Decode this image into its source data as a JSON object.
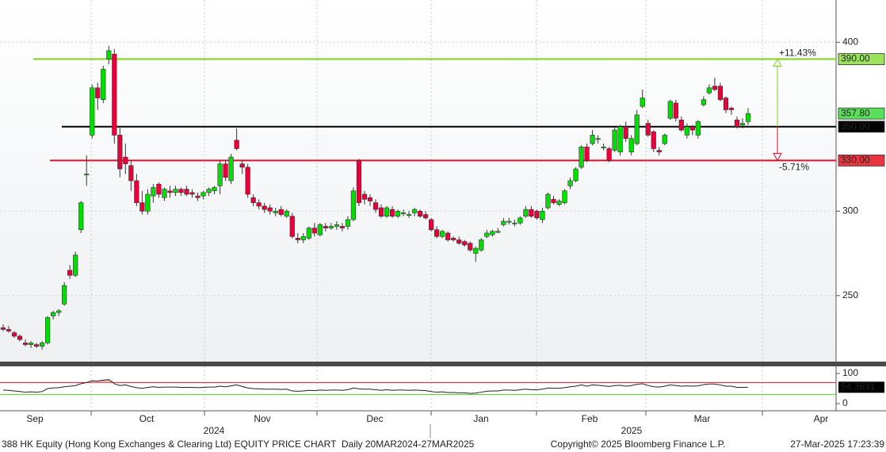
{
  "chart_data": {
    "type": "candlestick",
    "ylim": [
      210,
      425
    ],
    "yticks": [
      250,
      300,
      400
    ],
    "grid": true,
    "ohlc": [
      [
        231,
        233,
        229,
        230
      ],
      [
        230,
        232,
        228,
        229
      ],
      [
        228,
        229,
        225,
        226
      ],
      [
        226,
        227,
        223,
        224
      ],
      [
        222,
        224,
        220,
        221
      ],
      [
        221,
        223,
        219,
        222
      ],
      [
        221,
        222,
        219,
        220
      ],
      [
        220,
        223,
        218,
        222
      ],
      [
        222,
        238,
        221,
        237
      ],
      [
        238,
        241,
        236,
        240
      ],
      [
        240,
        242,
        238,
        241
      ],
      [
        245,
        258,
        244,
        256
      ],
      [
        265,
        268,
        260,
        262
      ],
      [
        262,
        276,
        261,
        274
      ],
      [
        289,
        306,
        287,
        305
      ],
      [
        322,
        333,
        315,
        322
      ],
      [
        345,
        375,
        343,
        373
      ],
      [
        373,
        376,
        360,
        367
      ],
      [
        366,
        386,
        364,
        384
      ],
      [
        390,
        398,
        387,
        395
      ],
      [
        393,
        396,
        340,
        345
      ],
      [
        345,
        350,
        320,
        325
      ],
      [
        332,
        340,
        322,
        328
      ],
      [
        327,
        330,
        312,
        318
      ],
      [
        318,
        322,
        303,
        305
      ],
      [
        305,
        312,
        298,
        300
      ],
      [
        300,
        313,
        298,
        310
      ],
      [
        309,
        316,
        305,
        314
      ],
      [
        316,
        317,
        308,
        310
      ],
      [
        308,
        314,
        306,
        313
      ],
      [
        312,
        315,
        308,
        311
      ],
      [
        311,
        315,
        309,
        313
      ],
      [
        313,
        314,
        309,
        311
      ],
      [
        313,
        315,
        309,
        310
      ],
      [
        311,
        313,
        308,
        310
      ],
      [
        309,
        311,
        306,
        308
      ],
      [
        309,
        312,
        307,
        311
      ],
      [
        311,
        314,
        309,
        313
      ],
      [
        312,
        315,
        310,
        314
      ],
      [
        315,
        330,
        310,
        328
      ],
      [
        328,
        330,
        318,
        320
      ],
      [
        318,
        334,
        316,
        332
      ],
      [
        342,
        349,
        336,
        337
      ],
      [
        328,
        330,
        322,
        326
      ],
      [
        326,
        328,
        308,
        310
      ],
      [
        308,
        310,
        303,
        305
      ],
      [
        305,
        307,
        301,
        303
      ],
      [
        303,
        305,
        299,
        301
      ],
      [
        302,
        304,
        298,
        300
      ],
      [
        299,
        302,
        297,
        300
      ],
      [
        301,
        303,
        297,
        298
      ],
      [
        297,
        301,
        296,
        300
      ],
      [
        297,
        299,
        284,
        285
      ],
      [
        284,
        287,
        281,
        283
      ],
      [
        283,
        287,
        281,
        285
      ],
      [
        284,
        291,
        283,
        290
      ],
      [
        290,
        293,
        285,
        287
      ],
      [
        286,
        293,
        285,
        292
      ],
      [
        291,
        293,
        288,
        290
      ],
      [
        290,
        293,
        289,
        291
      ],
      [
        291,
        294,
        289,
        292
      ],
      [
        291,
        293,
        288,
        290
      ],
      [
        291,
        297,
        289,
        295
      ],
      [
        295,
        314,
        294,
        312
      ],
      [
        330,
        331,
        303,
        305
      ],
      [
        310,
        312,
        304,
        307
      ],
      [
        308,
        310,
        303,
        306
      ],
      [
        305,
        307,
        299,
        301
      ],
      [
        302,
        304,
        296,
        297
      ],
      [
        297,
        303,
        296,
        302
      ],
      [
        301,
        303,
        296,
        297
      ],
      [
        297,
        301,
        296,
        300
      ],
      [
        299,
        301,
        297,
        299
      ],
      [
        298,
        300,
        296,
        298
      ],
      [
        299,
        302,
        297,
        301
      ],
      [
        300,
        301,
        296,
        297
      ],
      [
        298,
        300,
        295,
        296
      ],
      [
        295,
        296,
        288,
        289
      ],
      [
        289,
        291,
        284,
        285
      ],
      [
        285,
        289,
        284,
        288
      ],
      [
        287,
        288,
        282,
        283
      ],
      [
        284,
        285,
        282,
        283
      ],
      [
        283,
        285,
        280,
        281
      ],
      [
        282,
        283,
        279,
        280
      ],
      [
        281,
        282,
        276,
        277
      ],
      [
        275,
        279,
        270,
        278
      ],
      [
        277,
        284,
        276,
        283
      ],
      [
        285,
        289,
        284,
        287
      ],
      [
        286,
        289,
        285,
        288
      ],
      [
        288,
        290,
        287,
        288
      ],
      [
        292,
        296,
        291,
        294
      ],
      [
        294,
        296,
        292,
        294
      ],
      [
        293,
        295,
        291,
        293
      ],
      [
        293,
        297,
        292,
        296
      ],
      [
        297,
        303,
        296,
        301
      ],
      [
        301,
        303,
        296,
        297
      ],
      [
        300,
        301,
        295,
        296
      ],
      [
        295,
        302,
        293,
        300
      ],
      [
        302,
        311,
        301,
        310
      ],
      [
        307,
        309,
        304,
        305
      ],
      [
        304,
        307,
        303,
        306
      ],
      [
        305,
        313,
        304,
        312
      ],
      [
        315,
        320,
        313,
        318
      ],
      [
        318,
        326,
        317,
        325
      ],
      [
        326,
        339,
        325,
        338
      ],
      [
        338,
        340,
        329,
        330
      ],
      [
        340,
        348,
        339,
        345
      ],
      [
        343,
        345,
        340,
        343
      ],
      [
        338,
        340,
        336,
        338
      ],
      [
        337,
        338,
        329,
        330
      ],
      [
        336,
        350,
        335,
        348
      ],
      [
        335,
        351,
        333,
        350
      ],
      [
        350,
        353,
        341,
        343
      ],
      [
        335,
        345,
        333,
        343
      ],
      [
        340,
        360,
        339,
        357
      ],
      [
        362,
        372,
        361,
        367
      ],
      [
        352,
        354,
        344,
        345
      ],
      [
        347,
        348,
        335,
        337
      ],
      [
        336,
        338,
        333,
        335
      ],
      [
        340,
        346,
        339,
        345
      ],
      [
        355,
        366,
        354,
        365
      ],
      [
        364,
        366,
        353,
        355
      ],
      [
        354,
        356,
        347,
        348
      ],
      [
        345,
        352,
        343,
        350
      ],
      [
        350,
        351,
        345,
        348
      ],
      [
        345,
        354,
        343,
        353
      ],
      [
        363,
        368,
        362,
        366
      ],
      [
        370,
        375,
        369,
        373
      ],
      [
        374,
        379,
        371,
        372
      ],
      [
        374,
        376,
        365,
        366
      ],
      [
        367,
        368,
        358,
        360
      ],
      [
        361,
        362,
        357,
        360
      ],
      [
        354,
        356,
        349,
        350
      ],
      [
        351,
        355,
        349,
        352
      ],
      [
        353,
        361,
        351,
        357.8
      ]
    ],
    "up_color": "#00e000",
    "down_color": "#e8003a",
    "last_price": {
      "value": 357.8,
      "label": "357.80"
    },
    "levels": [
      {
        "value": 390,
        "label": "390.00",
        "color": "#7fd11b"
      },
      {
        "value": 350,
        "label": "350.00",
        "color": "#000000"
      },
      {
        "value": 330,
        "label": "330.00",
        "color": "#e0102c"
      }
    ],
    "annotations": [
      {
        "text": "+11.43%",
        "color": "#7fd11b"
      },
      {
        "text": "-5.71%",
        "color": "#e0102c"
      }
    ],
    "rsi": {
      "ylim": [
        0,
        100
      ],
      "yticks": [
        0,
        100
      ],
      "levels": [
        70,
        30
      ],
      "values": [
        45,
        44,
        42,
        40,
        38,
        39,
        38,
        40,
        50,
        52,
        53,
        56,
        58,
        60,
        66,
        70,
        76,
        75,
        78,
        80,
        66,
        60,
        62,
        57,
        53,
        51,
        54,
        56,
        54,
        55,
        55,
        55,
        54,
        54,
        54,
        53,
        54,
        55,
        55,
        58,
        56,
        59,
        62,
        57,
        52,
        50,
        49,
        48,
        48,
        48,
        47,
        48,
        42,
        41,
        42,
        44,
        43,
        45,
        44,
        45,
        45,
        44,
        46,
        52,
        49,
        48,
        48,
        46,
        44,
        46,
        44,
        45,
        45,
        44,
        45,
        44,
        43,
        40,
        38,
        39,
        37,
        37,
        36,
        36,
        34,
        35,
        38,
        41,
        42,
        42,
        45,
        45,
        44,
        46,
        48,
        46,
        46,
        48,
        52,
        51,
        51,
        53,
        56,
        58,
        62,
        58,
        62,
        61,
        59,
        57,
        60,
        61,
        58,
        60,
        64,
        66,
        60,
        56,
        55,
        58,
        62,
        60,
        58,
        59,
        58,
        59,
        63,
        65,
        65,
        62,
        58,
        58,
        54,
        54,
        54.3631
      ]
    },
    "months": [
      "Sep",
      "Oct",
      "Nov",
      "Dec",
      "Jan",
      "Feb",
      "Mar",
      "Apr"
    ],
    "years": [
      "2024",
      "2025"
    ],
    "footer": {
      "left": "388 HK Equity (Hong Kong Exchanges & Clearing Ltd) EQUITY PRICE CHART  Daily 20MAR2024-27MAR2025",
      "center": "Copyright© 2025 Bloomberg Finance L.P.",
      "right": "27-Mar-2025 17:23:39"
    }
  }
}
